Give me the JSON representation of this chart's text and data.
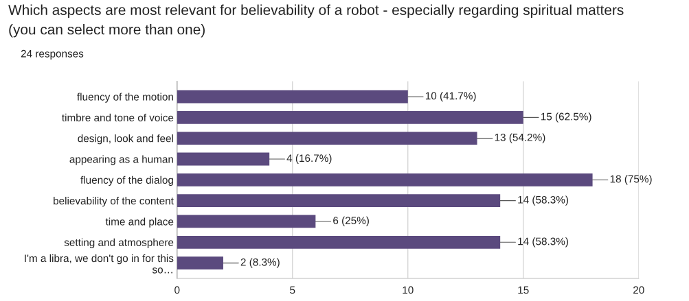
{
  "chart_data": {
    "type": "bar",
    "orientation": "horizontal",
    "title": "Which aspects are most relevant for believability of a robot - especially regarding spiritual matters\n(you can select more than one)",
    "subtitle": "24 responses",
    "categories": [
      "fluency of the motion",
      "timbre and tone of voice",
      "design, look and feel",
      "appearing as a human",
      "fluency of the dialog",
      "believability of the content",
      "time and place",
      "setting and atmosphere",
      "I'm a libra, we don't go in for this\nso…"
    ],
    "values": [
      10,
      15,
      13,
      4,
      18,
      14,
      6,
      14,
      2
    ],
    "value_labels": [
      "10 (41.7%)",
      "15 (62.5%)",
      "13 (54.2%)",
      "4 (16.7%)",
      "18 (75%)",
      "14 (58.3%)",
      "6 (25%)",
      "14 (58.3%)",
      "2 (8.3%)"
    ],
    "color": "#5b4a7e",
    "xlim": [
      0,
      20
    ],
    "xticks": [
      0,
      5,
      10,
      15,
      20
    ],
    "grid": "x",
    "legend": false
  }
}
